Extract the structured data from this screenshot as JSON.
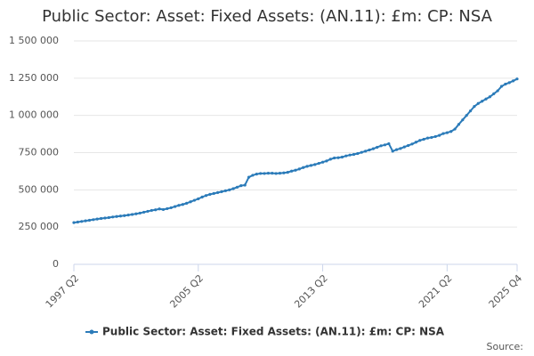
{
  "chart_data": {
    "type": "line",
    "title": "Public Sector: Asset: Fixed Assets: (AN.11): £m: CP: NSA",
    "source": "Source:",
    "categories": [
      "1997 Q2",
      null,
      null,
      null,
      null,
      null,
      null,
      null,
      null,
      null,
      null,
      null,
      null,
      null,
      null,
      null,
      null,
      null,
      null,
      null,
      null,
      null,
      null,
      null,
      null,
      null,
      null,
      null,
      null,
      null,
      null,
      null,
      "2005 Q2",
      null,
      null,
      null,
      null,
      null,
      null,
      null,
      null,
      null,
      null,
      null,
      null,
      null,
      null,
      null,
      null,
      null,
      null,
      null,
      null,
      null,
      null,
      null,
      null,
      null,
      null,
      null,
      null,
      null,
      null,
      null,
      "2013 Q2",
      null,
      null,
      null,
      null,
      null,
      null,
      null,
      null,
      null,
      null,
      null,
      null,
      null,
      null,
      null,
      null,
      null,
      null,
      null,
      null,
      null,
      null,
      null,
      null,
      null,
      null,
      null,
      null,
      null,
      null,
      null,
      "2021 Q2",
      null,
      null,
      null,
      null,
      null,
      null,
      null,
      null,
      null,
      null,
      null,
      null,
      null,
      null,
      null,
      null,
      null,
      "2025 Q4"
    ],
    "series": [
      {
        "name": "Public Sector: Asset: Fixed Assets: (AN.11): £m: CP: NSA",
        "color": "#2b7bb9",
        "values": [
          280000,
          284000,
          288000,
          292000,
          296000,
          300000,
          304000,
          308000,
          311000,
          314000,
          318000,
          321000,
          324000,
          327000,
          331000,
          335000,
          339000,
          344000,
          350000,
          356000,
          362000,
          366000,
          372000,
          368000,
          374000,
          380000,
          388000,
          396000,
          402000,
          410000,
          420000,
          430000,
          440000,
          452000,
          462000,
          470000,
          476000,
          482000,
          488000,
          494000,
          500000,
          508000,
          518000,
          528000,
          532000,
          585000,
          598000,
          606000,
          610000,
          610000,
          612000,
          612000,
          610000,
          612000,
          614000,
          618000,
          626000,
          632000,
          640000,
          650000,
          658000,
          664000,
          670000,
          678000,
          686000,
          694000,
          706000,
          714000,
          716000,
          720000,
          728000,
          734000,
          738000,
          744000,
          752000,
          760000,
          768000,
          776000,
          786000,
          796000,
          802000,
          810000,
          760000,
          770000,
          778000,
          788000,
          798000,
          808000,
          820000,
          832000,
          840000,
          848000,
          852000,
          858000,
          866000,
          878000,
          884000,
          892000,
          908000,
          940000,
          970000,
          1000000,
          1030000,
          1060000,
          1080000,
          1095000,
          1110000,
          1125000,
          1145000,
          1165000,
          1195000,
          1210000,
          1220000,
          1232000,
          1245000
        ]
      }
    ],
    "ylim": [
      0,
      1500000
    ],
    "yticks": [
      0,
      {
        "value": 250000,
        "label": "250 000"
      },
      {
        "value": 500000,
        "label": "500 000"
      },
      {
        "value": 750000,
        "label": "750 000"
      },
      {
        "value": 1000000,
        "label": "1 000 000"
      },
      {
        "value": 1250000,
        "label": "1 250 000"
      },
      {
        "value": 1500000,
        "label": "1 500 000"
      }
    ],
    "grid": true
  }
}
